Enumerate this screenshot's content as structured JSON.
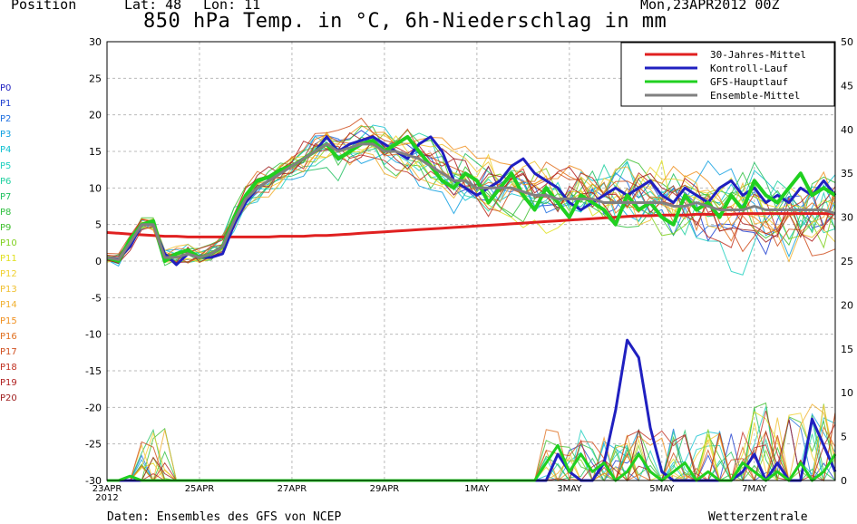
{
  "header": {
    "position": "Position",
    "lat": "Lat: 48",
    "lon": "Lon: 11",
    "run": "Mon,23APR2012 00Z"
  },
  "title": "850 hPa Temp. in °C, 6h-Niederschlag in mm",
  "footer": {
    "source": "Daten: Ensembles des GFS von NCEP",
    "brand": "Wetterzentrale"
  },
  "members": [
    {
      "label": "P0",
      "color": "#2020c0"
    },
    {
      "label": "P1",
      "color": "#2040d0"
    },
    {
      "label": "P2",
      "color": "#2070e0"
    },
    {
      "label": "P3",
      "color": "#10a0e0"
    },
    {
      "label": "P4",
      "color": "#10c0d0"
    },
    {
      "label": "P5",
      "color": "#20d0c0"
    },
    {
      "label": "P6",
      "color": "#20d0a0"
    },
    {
      "label": "P7",
      "color": "#20c060"
    },
    {
      "label": "P8",
      "color": "#30c040"
    },
    {
      "label": "P9",
      "color": "#40c030"
    },
    {
      "label": "P10",
      "color": "#80d020"
    },
    {
      "label": "P11",
      "color": "#e0e020"
    },
    {
      "label": "P12",
      "color": "#f0d030"
    },
    {
      "label": "P13",
      "color": "#f0c030"
    },
    {
      "label": "P14",
      "color": "#f0b030"
    },
    {
      "label": "P15",
      "color": "#f09020"
    },
    {
      "label": "P16",
      "color": "#e07020"
    },
    {
      "label": "P17",
      "color": "#d05020"
    },
    {
      "label": "P18",
      "color": "#c03020"
    },
    {
      "label": "P19",
      "color": "#b02020"
    },
    {
      "label": "P20",
      "color": "#a02020"
    }
  ],
  "chart_data": {
    "type": "line",
    "title": "850 hPa Temp. in °C, 6h-Niederschlag in mm",
    "x_ticks": [
      "23APR\n2012",
      "25APR",
      "27APR",
      "29APR",
      "1MAY",
      "3MAY",
      "5MAY",
      "7MAY"
    ],
    "x_start": "2012-04-23T00:00Z",
    "x_end": "2012-05-08T18:00Z",
    "y_left": {
      "min": -30,
      "max": 30,
      "ticks": [
        -30,
        -25,
        -20,
        -15,
        -10,
        -5,
        0,
        5,
        10,
        15,
        20,
        25,
        30
      ],
      "unit": "°C"
    },
    "y_right": {
      "min": 0,
      "max": 50,
      "ticks": [
        0,
        5,
        10,
        15,
        20,
        25,
        30,
        35,
        40,
        45,
        50
      ],
      "unit": "mm"
    },
    "grid": true,
    "legend_position": "top-right",
    "legend": [
      {
        "name": "30-Jahres-Mittel",
        "color": "#e02020"
      },
      {
        "name": "Kontroll-Lauf",
        "color": "#2020c0"
      },
      {
        "name": "GFS-Hauptlauf",
        "color": "#20d020"
      },
      {
        "name": "Ensemble-Mittel",
        "color": "#808080"
      }
    ],
    "series": [
      {
        "name": "30-Jahres-Mittel",
        "color": "#e02020",
        "width": 3,
        "axis": "left",
        "values": [
          3.9,
          3.8,
          3.7,
          3.6,
          3.5,
          3.4,
          3.4,
          3.3,
          3.3,
          3.3,
          3.3,
          3.3,
          3.3,
          3.3,
          3.3,
          3.4,
          3.4,
          3.4,
          3.5,
          3.5,
          3.6,
          3.7,
          3.8,
          3.9,
          4.0,
          4.1,
          4.2,
          4.3,
          4.4,
          4.5,
          4.6,
          4.7,
          4.8,
          4.9,
          5.0,
          5.1,
          5.2,
          5.3,
          5.4,
          5.5,
          5.6,
          5.7,
          5.8,
          5.9,
          6.0,
          6.1,
          6.2,
          6.2,
          6.3,
          6.3,
          6.3,
          6.4,
          6.4,
          6.4,
          6.4,
          6.5,
          6.5,
          6.5,
          6.5,
          6.5,
          6.5,
          6.5,
          6.5,
          6.5
        ]
      },
      {
        "name": "Kontroll-Lauf",
        "color": "#2020c0",
        "width": 3,
        "axis": "left",
        "values": [
          0.5,
          0.3,
          2,
          5,
          5,
          1,
          -0.5,
          1,
          0.5,
          0.5,
          1,
          5,
          8,
          10,
          11,
          12,
          13,
          14,
          15,
          17,
          15,
          16,
          16.5,
          17,
          16,
          15,
          14,
          16,
          17,
          15,
          11,
          10,
          9,
          10,
          11,
          13,
          14,
          12,
          11,
          10,
          8,
          7,
          8,
          9,
          10,
          9,
          10,
          11,
          9,
          8,
          10,
          9,
          8,
          10,
          11,
          9,
          10,
          8,
          9,
          8,
          10,
          9,
          11,
          9
        ]
      },
      {
        "name": "GFS-Hauptlauf",
        "color": "#20d020",
        "width": 4,
        "axis": "left",
        "values": [
          0.5,
          0,
          3,
          5,
          5.5,
          0,
          1,
          1.5,
          0.5,
          1,
          2,
          6,
          9,
          11,
          11.5,
          12.5,
          13,
          14,
          15,
          16,
          14,
          15,
          16,
          16.5,
          15,
          16,
          17,
          15,
          13,
          11,
          10,
          12,
          11,
          8,
          10,
          12,
          9,
          7,
          10,
          8,
          6,
          9,
          8,
          7,
          5,
          9,
          7,
          8,
          6,
          5,
          9,
          7,
          8,
          6,
          9,
          7,
          11,
          9,
          8,
          10,
          12,
          9,
          10,
          9
        ]
      },
      {
        "name": "Ensemble-Mittel",
        "color": "#808080",
        "width": 3,
        "axis": "left",
        "values": [
          0.5,
          0.2,
          2.5,
          5,
          5,
          0.5,
          0.5,
          1,
          0.5,
          1,
          2,
          5.5,
          8.5,
          10,
          11,
          12,
          13,
          14,
          15,
          16,
          15,
          15.5,
          16,
          16,
          15,
          15,
          14.5,
          14,
          13,
          12,
          11,
          11,
          10,
          10,
          10,
          10,
          9.5,
          9,
          9,
          8.5,
          8.5,
          8.5,
          8.5,
          8,
          8,
          8,
          8,
          8,
          8,
          7.5,
          7.5,
          8,
          7.5,
          7,
          7,
          7,
          7.5,
          7,
          7,
          7,
          7,
          7,
          7,
          6.5
        ]
      },
      {
        "name": "Kontroll-Lauf Niederschlag",
        "color": "#2020c0",
        "width": 3,
        "axis": "right",
        "values": [
          0,
          0,
          0,
          0,
          0,
          0,
          0,
          0,
          0,
          0,
          0,
          0,
          0,
          0,
          0,
          0,
          0,
          0,
          0,
          0,
          0,
          0,
          0,
          0,
          0,
          0,
          0,
          0,
          0,
          0,
          0,
          0,
          0,
          0,
          0,
          0,
          0,
          0,
          0,
          3,
          1,
          0,
          0,
          2,
          8,
          16,
          14,
          6,
          1,
          0,
          0,
          0,
          0,
          0,
          0,
          1,
          3,
          0,
          2,
          0,
          0,
          7,
          4,
          1
        ]
      },
      {
        "name": "GFS-Hauptlauf Niederschlag",
        "color": "#20d020",
        "width": 3,
        "axis": "right",
        "values": [
          0,
          0,
          0.5,
          0,
          0,
          0,
          0,
          0,
          0,
          0,
          0,
          0,
          0,
          0,
          0,
          0,
          0,
          0,
          0,
          0,
          0,
          0,
          0,
          0,
          0,
          0,
          0,
          0,
          0,
          0,
          0,
          0,
          0,
          0,
          0,
          0,
          0,
          0,
          2,
          4,
          1,
          3,
          1,
          2,
          0,
          1,
          3,
          1,
          0,
          1,
          2,
          0,
          1,
          0,
          0,
          2,
          1,
          0,
          1,
          0,
          2,
          0,
          1,
          3
        ]
      }
    ]
  }
}
